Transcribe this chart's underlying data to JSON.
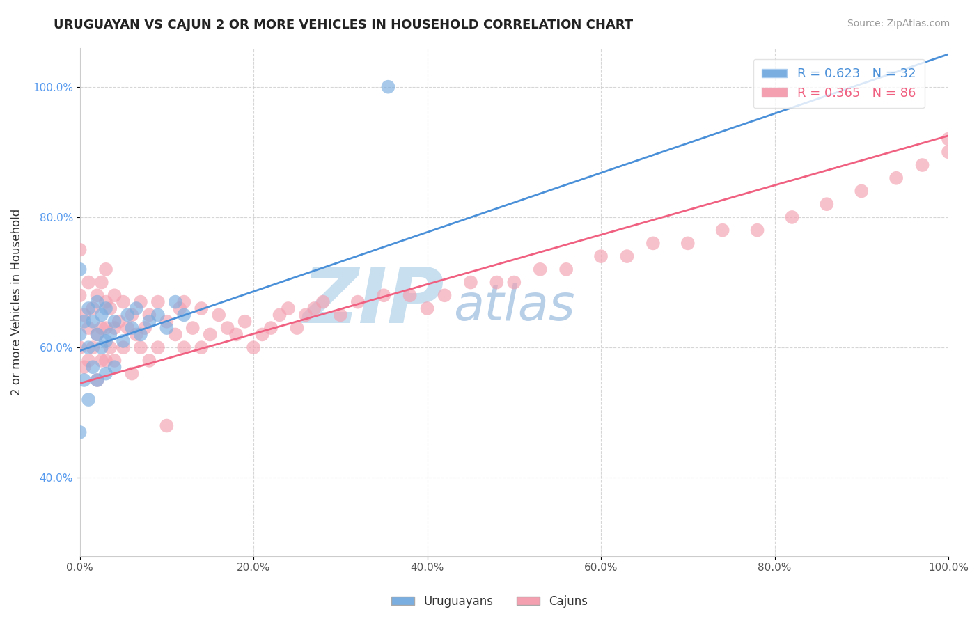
{
  "title": "URUGUAYAN VS CAJUN 2 OR MORE VEHICLES IN HOUSEHOLD CORRELATION CHART",
  "source": "Source: ZipAtlas.com",
  "xlabel_ticks": [
    "0.0%",
    "20.0%",
    "40.0%",
    "60.0%",
    "80.0%",
    "100.0%"
  ],
  "ylabel_ticks": [
    "40.0%",
    "60.0%",
    "80.0%",
    "100.0%"
  ],
  "ylabel_label": "2 or more Vehicles in Household",
  "legend_entries": [
    {
      "label": "R = 0.623   N = 32",
      "color": "#a8c4e0"
    },
    {
      "label": "R = 0.365   N = 86",
      "color": "#f4a8b8"
    }
  ],
  "legend_bottom": [
    {
      "label": "Uruguayans",
      "color": "#a8c4e0"
    },
    {
      "label": "Cajuns",
      "color": "#f4a8b8"
    }
  ],
  "uruguayan_color": "#7aade0",
  "cajun_color": "#f4a0b0",
  "trendline_blue": "#4a90d9",
  "trendline_pink": "#f06080",
  "watermark_zip": "ZIP",
  "watermark_atlas": "atlas",
  "watermark_color_zip": "#c8dff0",
  "watermark_color_atlas": "#b8cfe8",
  "watermark_fontsize": 80,
  "R_uruguayan": 0.623,
  "N_uruguayan": 32,
  "R_cajun": 0.365,
  "N_cajun": 86,
  "xmin": 0.0,
  "xmax": 1.0,
  "ymin": 0.28,
  "ymax": 1.06,
  "blue_trend_x0": 0.0,
  "blue_trend_y0": 0.595,
  "blue_trend_x1": 1.0,
  "blue_trend_y1": 1.05,
  "pink_trend_x0": 0.0,
  "pink_trend_y0": 0.545,
  "pink_trend_x1": 1.0,
  "pink_trend_y1": 0.925,
  "uruguayan_x": [
    0.0,
    0.0,
    0.0,
    0.005,
    0.005,
    0.01,
    0.01,
    0.01,
    0.015,
    0.015,
    0.02,
    0.02,
    0.02,
    0.025,
    0.025,
    0.03,
    0.03,
    0.03,
    0.035,
    0.04,
    0.04,
    0.05,
    0.055,
    0.06,
    0.065,
    0.07,
    0.08,
    0.09,
    0.1,
    0.11,
    0.12,
    0.355
  ],
  "uruguayan_y": [
    0.47,
    0.62,
    0.72,
    0.55,
    0.64,
    0.52,
    0.6,
    0.66,
    0.57,
    0.64,
    0.55,
    0.62,
    0.67,
    0.6,
    0.65,
    0.56,
    0.61,
    0.66,
    0.62,
    0.57,
    0.64,
    0.61,
    0.65,
    0.63,
    0.66,
    0.62,
    0.64,
    0.65,
    0.63,
    0.67,
    0.65,
    1.0
  ],
  "cajun_x": [
    0.0,
    0.0,
    0.0,
    0.005,
    0.005,
    0.01,
    0.01,
    0.01,
    0.015,
    0.015,
    0.02,
    0.02,
    0.02,
    0.025,
    0.025,
    0.025,
    0.03,
    0.03,
    0.03,
    0.03,
    0.035,
    0.035,
    0.04,
    0.04,
    0.04,
    0.045,
    0.05,
    0.05,
    0.055,
    0.06,
    0.06,
    0.065,
    0.07,
    0.07,
    0.075,
    0.08,
    0.08,
    0.09,
    0.09,
    0.1,
    0.1,
    0.11,
    0.115,
    0.12,
    0.12,
    0.13,
    0.14,
    0.14,
    0.15,
    0.16,
    0.17,
    0.18,
    0.19,
    0.2,
    0.21,
    0.22,
    0.23,
    0.24,
    0.25,
    0.26,
    0.27,
    0.28,
    0.3,
    0.32,
    0.35,
    0.38,
    0.4,
    0.42,
    0.45,
    0.48,
    0.5,
    0.53,
    0.56,
    0.6,
    0.63,
    0.66,
    0.7,
    0.74,
    0.78,
    0.82,
    0.86,
    0.9,
    0.94,
    0.97,
    1.0,
    1.0
  ],
  "cajun_y": [
    0.6,
    0.68,
    0.75,
    0.57,
    0.65,
    0.58,
    0.63,
    0.7,
    0.6,
    0.66,
    0.55,
    0.62,
    0.68,
    0.58,
    0.63,
    0.7,
    0.58,
    0.63,
    0.67,
    0.72,
    0.6,
    0.66,
    0.58,
    0.63,
    0.68,
    0.64,
    0.6,
    0.67,
    0.63,
    0.56,
    0.65,
    0.62,
    0.6,
    0.67,
    0.63,
    0.58,
    0.65,
    0.6,
    0.67,
    0.48,
    0.64,
    0.62,
    0.66,
    0.6,
    0.67,
    0.63,
    0.6,
    0.66,
    0.62,
    0.65,
    0.63,
    0.62,
    0.64,
    0.6,
    0.62,
    0.63,
    0.65,
    0.66,
    0.63,
    0.65,
    0.66,
    0.67,
    0.65,
    0.67,
    0.68,
    0.68,
    0.66,
    0.68,
    0.7,
    0.7,
    0.7,
    0.72,
    0.72,
    0.74,
    0.74,
    0.76,
    0.76,
    0.78,
    0.78,
    0.8,
    0.82,
    0.84,
    0.86,
    0.88,
    0.9,
    0.92
  ]
}
